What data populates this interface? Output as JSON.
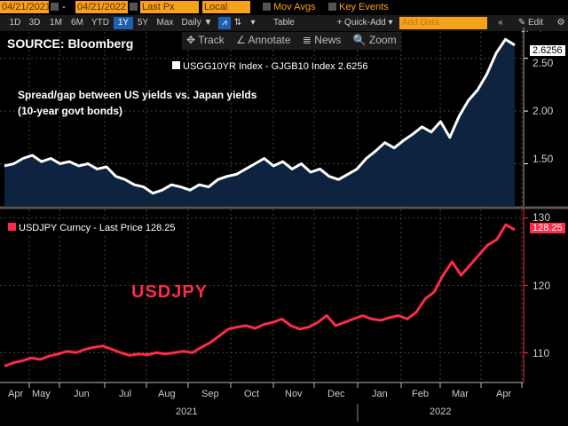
{
  "toolbar": {
    "start_date": "04/21/2021",
    "end_date": "04/21/2022",
    "price_field": "Last Px",
    "currency": "Local CCY",
    "mov_avgs": "Mov Avgs",
    "key_events": "Key Events",
    "ranges": [
      "1D",
      "3D",
      "1M",
      "6M",
      "YTD",
      "1Y",
      "5Y",
      "Max"
    ],
    "selected_range": "1Y",
    "frequency": "Daily ▼",
    "table": "Table",
    "quick_add": "+ Quick-Add ▾",
    "add_data_placeholder": "Add Data",
    "edit_chart": "✎ Edit Chart",
    "collapse": "«",
    "settings": "⚙"
  },
  "chart_tools": {
    "track": "✥ Track",
    "annotate": "∠ Annotate",
    "news": "≣ News",
    "zoom": "🔍 Zoom"
  },
  "source": "SOURCE: Bloomberg",
  "colors": {
    "spread": "#ffffff",
    "spread_fill": "#0e2340",
    "usdjpy": "#ff2a4a",
    "toolbar_orange": "#f7a21b"
  },
  "chart_data": [
    {
      "type": "area",
      "title": "Spread/gap between US yields vs. Japan yields",
      "subtitle": "(10-year govt bonds)",
      "legend": "USGG10YR Index - GJGB10 Index 2.6256",
      "last_value": "2.6256",
      "ylim": [
        1.1,
        2.75
      ],
      "yticks": [
        "2.50",
        "2.00",
        "1.50"
      ],
      "ytick_values": [
        2.5,
        2.0,
        1.5
      ],
      "values": [
        1.48,
        1.5,
        1.55,
        1.58,
        1.52,
        1.55,
        1.5,
        1.52,
        1.48,
        1.5,
        1.45,
        1.47,
        1.38,
        1.35,
        1.3,
        1.28,
        1.22,
        1.25,
        1.3,
        1.28,
        1.25,
        1.3,
        1.28,
        1.35,
        1.38,
        1.4,
        1.45,
        1.5,
        1.55,
        1.48,
        1.52,
        1.45,
        1.5,
        1.42,
        1.45,
        1.38,
        1.35,
        1.4,
        1.45,
        1.55,
        1.62,
        1.7,
        1.65,
        1.72,
        1.78,
        1.85,
        1.8,
        1.9,
        1.75,
        1.95,
        2.1,
        2.2,
        2.35,
        2.55,
        2.68,
        2.6256
      ]
    },
    {
      "type": "line",
      "title": "USDJPY",
      "legend": "USDJPY Curncy - Last Price 128.25",
      "last_value": "128.25",
      "ylim": [
        105.7,
        131
      ],
      "yticks": [
        "130",
        "120",
        "110"
      ],
      "ytick_values": [
        130,
        120,
        110
      ],
      "values": [
        108.0,
        108.5,
        108.8,
        109.2,
        109.0,
        109.5,
        109.8,
        110.2,
        110.0,
        110.5,
        110.8,
        111.0,
        110.5,
        110.0,
        109.6,
        109.8,
        109.7,
        110.0,
        109.8,
        110.0,
        110.2,
        110.0,
        110.8,
        111.5,
        112.5,
        113.5,
        113.8,
        114.0,
        113.6,
        114.2,
        114.5,
        115.0,
        114.0,
        113.5,
        113.8,
        114.5,
        115.5,
        114.0,
        114.5,
        115.0,
        115.5,
        115.0,
        114.8,
        115.2,
        115.5,
        115.0,
        116.0,
        118.0,
        119.0,
        121.5,
        123.5,
        121.5,
        123.0,
        124.5,
        126.0,
        126.8,
        129.0,
        128.25
      ]
    }
  ],
  "x_axis": {
    "months": [
      "Apr",
      "May",
      "Jun",
      "Jul",
      "Aug",
      "Sep",
      "Oct",
      "Nov",
      "Dec",
      "Jan",
      "Feb",
      "Mar",
      "Apr"
    ],
    "years": [
      "2021",
      "2022"
    ]
  }
}
